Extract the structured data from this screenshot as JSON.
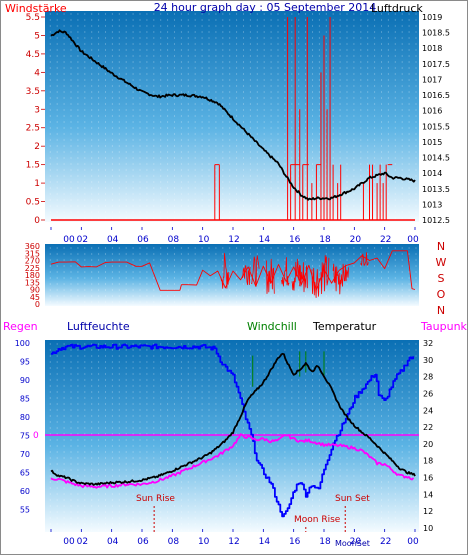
{
  "title": "24 hour graph day : 05 September 2014",
  "colors": {
    "wind": "#ff0000",
    "pressure": "#000000",
    "humidity": "#0000ff",
    "temperature": "#000000",
    "dewpoint": "#ff00ff",
    "windchill": "#008000",
    "rain": "#ff00ff",
    "sun_event": "#cc0000",
    "axis": "#0000cc"
  },
  "x_tick_labels": [
    "00",
    "02",
    "04",
    "06",
    "08",
    "10",
    "12",
    "14",
    "16",
    "18",
    "20",
    "22",
    "00"
  ],
  "chart_data": [
    {
      "type": "line",
      "name": "wind-pressure",
      "left_label": "Windstärke",
      "right_label": "Luftdruck",
      "left_ticks": [
        "5.5",
        "5",
        "4.5",
        "4",
        "3.5",
        "3",
        "2.5",
        "2",
        "1.5",
        "1",
        "0.5",
        "0"
      ],
      "right_ticks": [
        "1019",
        "1018.5",
        "1018",
        "1017.5",
        "1017",
        "1016.5",
        "1016",
        "1015.5",
        "1015",
        "1014.5",
        "1014",
        "1013.5",
        "1013",
        "1012.5"
      ],
      "left_range": [
        0,
        5.5
      ],
      "right_range": [
        1012.5,
        1019
      ],
      "x_range_hours": [
        0,
        24
      ],
      "pressure_points": [
        [
          0,
          1018.4
        ],
        [
          0.5,
          1018.55
        ],
        [
          1,
          1018.5
        ],
        [
          1.5,
          1018.2
        ],
        [
          2,
          1017.9
        ],
        [
          3,
          1017.55
        ],
        [
          4,
          1017.2
        ],
        [
          5,
          1016.9
        ],
        [
          6,
          1016.6
        ],
        [
          7,
          1016.45
        ],
        [
          8,
          1016.5
        ],
        [
          9,
          1016.5
        ],
        [
          10,
          1016.45
        ],
        [
          10.5,
          1016.35
        ],
        [
          11,
          1016.25
        ],
        [
          11.5,
          1016.0
        ],
        [
          12,
          1015.75
        ],
        [
          13,
          1015.25
        ],
        [
          14,
          1014.75
        ],
        [
          15,
          1014.3
        ],
        [
          15.5,
          1013.9
        ],
        [
          16,
          1013.55
        ],
        [
          16.5,
          1013.3
        ],
        [
          17,
          1013.15
        ],
        [
          17.5,
          1013.2
        ],
        [
          18,
          1013.2
        ],
        [
          18.5,
          1013.2
        ],
        [
          19,
          1013.3
        ],
        [
          20,
          1013.5
        ],
        [
          21,
          1013.85
        ],
        [
          22,
          1014.0
        ],
        [
          22.5,
          1013.85
        ],
        [
          23,
          1013.85
        ],
        [
          24,
          1013.75
        ]
      ],
      "wind_segments": [
        [
          10.8,
          10.8,
          1.5
        ],
        [
          10.8,
          11.1,
          1.5
        ],
        [
          11.1,
          11.1,
          1.5
        ],
        [
          15.6,
          15.6,
          5.5
        ],
        [
          15.8,
          15.8,
          1.5
        ],
        [
          15.8,
          16.4,
          1.5
        ],
        [
          16.1,
          16.1,
          5.5
        ],
        [
          16.4,
          16.4,
          3.0
        ],
        [
          16.6,
          16.6,
          1.5
        ],
        [
          16.6,
          17.0,
          1.5
        ],
        [
          16.9,
          16.9,
          5.5
        ],
        [
          17.2,
          17.2,
          1.0
        ],
        [
          17.5,
          17.5,
          1.5
        ],
        [
          17.5,
          17.8,
          1.5
        ],
        [
          17.8,
          17.8,
          4.0
        ],
        [
          18.0,
          18.0,
          5.0
        ],
        [
          18.2,
          18.2,
          3.0
        ],
        [
          18.4,
          18.4,
          5.5
        ],
        [
          18.6,
          18.6,
          1.5
        ],
        [
          18.9,
          18.9,
          1.0
        ],
        [
          19.1,
          19.1,
          1.5
        ],
        [
          20.6,
          20.6,
          1.0
        ],
        [
          21.0,
          21.0,
          1.5
        ],
        [
          21.2,
          21.2,
          1.5
        ],
        [
          21.5,
          21.5,
          1.0
        ],
        [
          21.7,
          21.7,
          1.5
        ],
        [
          21.9,
          21.9,
          1.0
        ],
        [
          22.1,
          22.1,
          1.5
        ],
        [
          22.2,
          22.5,
          1.5
        ]
      ]
    },
    {
      "type": "line",
      "name": "wind-direction",
      "left_ticks": [
        "360",
        "315",
        "270",
        "225",
        "180",
        "135",
        "90",
        "45",
        "0"
      ],
      "range": [
        0,
        360
      ],
      "compass_labels": [
        "N",
        "W",
        "S",
        "O",
        "N"
      ],
      "points": [
        [
          0,
          247
        ],
        [
          0.5,
          260
        ],
        [
          1,
          260
        ],
        [
          1.6,
          262
        ],
        [
          2,
          230
        ],
        [
          2.5,
          232
        ],
        [
          3,
          230
        ],
        [
          3.6,
          258
        ],
        [
          4,
          260
        ],
        [
          5,
          260
        ],
        [
          5.6,
          234
        ],
        [
          6,
          234
        ],
        [
          6.5,
          255
        ],
        [
          7.2,
          85
        ],
        [
          7.8,
          85
        ],
        [
          8.5,
          85
        ],
        [
          8.6,
          120
        ],
        [
          9,
          120
        ],
        [
          9.6,
          118
        ],
        [
          10,
          210
        ],
        [
          10.5,
          175
        ],
        [
          11,
          205
        ],
        [
          11.5,
          100
        ],
        [
          12,
          205
        ],
        [
          12.5,
          150
        ],
        [
          13,
          230
        ],
        [
          13.5,
          110
        ],
        [
          14,
          235
        ],
        [
          14.5,
          130
        ],
        [
          15,
          245
        ],
        [
          15.5,
          140
        ],
        [
          16,
          230
        ],
        [
          16.5,
          120
        ],
        [
          17,
          240
        ],
        [
          17.5,
          90
        ],
        [
          18,
          215
        ],
        [
          18.5,
          130
        ],
        [
          19,
          210
        ],
        [
          19.5,
          240
        ],
        [
          20,
          255
        ],
        [
          20.5,
          300
        ],
        [
          21,
          270
        ],
        [
          21.5,
          285
        ],
        [
          22,
          220
        ],
        [
          22.5,
          330
        ],
        [
          23,
          330
        ],
        [
          23.5,
          330
        ],
        [
          23.8,
          95
        ],
        [
          24,
          90
        ]
      ],
      "noise": [
        [
          11.2,
          85,
          320
        ],
        [
          12.6,
          120,
          300
        ],
        [
          13.2,
          110,
          300
        ],
        [
          14.2,
          60,
          290
        ],
        [
          15.2,
          100,
          300
        ],
        [
          15.9,
          60,
          305
        ],
        [
          16.4,
          50,
          290
        ],
        [
          17.2,
          40,
          280
        ],
        [
          17.8,
          60,
          310
        ],
        [
          18.6,
          40,
          280
        ],
        [
          19.1,
          110,
          250
        ],
        [
          20.4,
          240,
          320
        ]
      ]
    },
    {
      "type": "line",
      "name": "temperature-humidity",
      "left_label": "Regen",
      "left_label2": "Luftfeuchte",
      "center_label": "Windchill",
      "center_label2": "Temperatur",
      "right_label": "Taupunkt",
      "left_ticks": [
        "100",
        "95",
        "90",
        "85",
        "80",
        "75",
        "70",
        "65",
        "60",
        "55"
      ],
      "right_ticks": [
        "32",
        "30",
        "28",
        "26",
        "24",
        "22",
        "20",
        "18",
        "16",
        "14",
        "12",
        "10"
      ],
      "humidity_range": [
        50,
        100
      ],
      "temperature_range": [
        10,
        32
      ],
      "rain_value": 0,
      "rain_label": "0",
      "annotations": {
        "sun_rise": "Sun Rise",
        "sun_set": "Sun Set",
        "moon_rise": "Moon Rise",
        "moon_set": "MoonSet"
      },
      "sun_rise_hour": 6.8,
      "sun_set_hour": 19.4,
      "moon_rise_hour": 16.8,
      "humidity_points": [
        [
          0,
          97
        ],
        [
          0.5,
          98.5
        ],
        [
          1,
          99
        ],
        [
          2,
          99
        ],
        [
          4,
          99
        ],
        [
          6,
          99
        ],
        [
          8,
          99
        ],
        [
          10,
          99
        ],
        [
          10.8,
          98.5
        ],
        [
          11.2,
          95
        ],
        [
          11.6,
          93
        ],
        [
          12,
          91
        ],
        [
          12.4,
          86
        ],
        [
          12.8,
          80
        ],
        [
          13.2,
          75
        ],
        [
          13.6,
          68
        ],
        [
          14,
          65
        ],
        [
          14.5,
          62
        ],
        [
          15,
          56
        ],
        [
          15.3,
          53
        ],
        [
          15.6,
          55
        ],
        [
          16,
          60
        ],
        [
          16.4,
          63
        ],
        [
          16.8,
          59
        ],
        [
          17.2,
          62
        ],
        [
          17.6,
          60
        ],
        [
          18,
          66
        ],
        [
          18.6,
          73
        ],
        [
          19,
          76
        ],
        [
          19.6,
          81
        ],
        [
          20,
          85
        ],
        [
          20.6,
          88
        ],
        [
          21,
          90
        ],
        [
          21.4,
          92
        ],
        [
          21.6,
          86
        ],
        [
          22,
          84
        ],
        [
          22.4,
          88
        ],
        [
          22.8,
          91
        ],
        [
          23.2,
          93
        ],
        [
          23.6,
          96
        ],
        [
          24,
          96
        ]
      ],
      "temperature_points": [
        [
          0,
          16.8
        ],
        [
          0.5,
          16.2
        ],
        [
          1,
          16.0
        ],
        [
          1.5,
          15.6
        ],
        [
          2,
          15.3
        ],
        [
          3,
          15.2
        ],
        [
          4,
          15.4
        ],
        [
          5,
          15.5
        ],
        [
          6,
          15.7
        ],
        [
          7,
          16.1
        ],
        [
          8,
          16.8
        ],
        [
          9,
          17.6
        ],
        [
          10,
          18.4
        ],
        [
          10.5,
          18.9
        ],
        [
          11,
          19.6
        ],
        [
          11.5,
          20.4
        ],
        [
          12,
          21.4
        ],
        [
          12.5,
          23.3
        ],
        [
          13,
          25.3
        ],
        [
          13.5,
          26.3
        ],
        [
          14,
          27.3
        ],
        [
          14.5,
          28.8
        ],
        [
          15,
          30.3
        ],
        [
          15.3,
          30.8
        ],
        [
          15.6,
          29.6
        ],
        [
          16,
          28.3
        ],
        [
          16.4,
          28.8
        ],
        [
          16.8,
          29.6
        ],
        [
          17.2,
          28.6
        ],
        [
          17.6,
          29.3
        ],
        [
          18,
          28.1
        ],
        [
          18.5,
          26.5
        ],
        [
          19,
          24.6
        ],
        [
          19.5,
          23.2
        ],
        [
          20,
          22.2
        ],
        [
          20.5,
          21.4
        ],
        [
          21,
          20.7
        ],
        [
          21.5,
          19.8
        ],
        [
          22,
          18.9
        ],
        [
          22.5,
          18.0
        ],
        [
          23,
          17.1
        ],
        [
          23.5,
          16.6
        ],
        [
          24,
          16.3
        ]
      ],
      "dewpoint_points": [
        [
          0,
          15.9
        ],
        [
          0.5,
          15.8
        ],
        [
          1,
          15.5
        ],
        [
          2,
          15.0
        ],
        [
          3,
          14.9
        ],
        [
          4,
          15.0
        ],
        [
          5,
          15.2
        ],
        [
          6,
          15.2
        ],
        [
          7,
          15.6
        ],
        [
          8,
          16.2
        ],
        [
          9,
          17.0
        ],
        [
          10,
          17.8
        ],
        [
          11,
          18.6
        ],
        [
          11.5,
          19.2
        ],
        [
          12,
          19.8
        ],
        [
          12.5,
          21.0
        ],
        [
          13,
          20.8
        ],
        [
          13.5,
          20.5
        ],
        [
          14,
          20.6
        ],
        [
          14.5,
          20.3
        ],
        [
          15,
          20.4
        ],
        [
          15.5,
          21.1
        ],
        [
          16,
          20.6
        ],
        [
          16.5,
          20.3
        ],
        [
          17,
          20.4
        ],
        [
          18,
          19.9
        ],
        [
          19,
          19.8
        ],
        [
          20,
          19.5
        ],
        [
          20.5,
          19.2
        ],
        [
          21,
          18.5
        ],
        [
          21.5,
          17.7
        ],
        [
          22,
          17.6
        ],
        [
          22.5,
          16.9
        ],
        [
          23,
          16.2
        ],
        [
          23.5,
          16.1
        ],
        [
          24,
          15.8
        ]
      ],
      "windchill_bars": [
        [
          13.3,
          30.5,
          26.8
        ],
        [
          16.4,
          31.0,
          28.0
        ],
        [
          16.8,
          31.0,
          28.5
        ],
        [
          18.0,
          31.0,
          28.0
        ]
      ]
    }
  ]
}
